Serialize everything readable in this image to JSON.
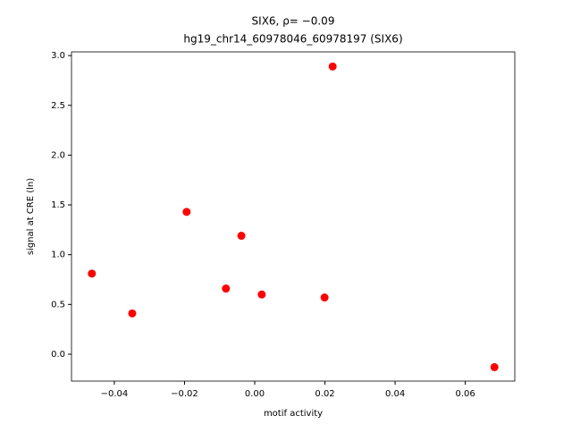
{
  "chart_data": {
    "type": "scatter",
    "title": "SIX6, ρ= −0.09",
    "subtitle": "hg19_chr14_60978046_60978197 (SIX6)",
    "x_label": "motif activity",
    "y_label": "signal at CRE (ln)",
    "color": "#ff0000",
    "x": [
      -0.0464,
      -0.0349,
      -0.0194,
      -0.0082,
      -0.0038,
      0.002,
      0.0199,
      0.0222,
      0.0683
    ],
    "values": [
      0.81,
      0.41,
      1.43,
      0.66,
      1.19,
      0.6,
      0.57,
      2.89,
      -0.13
    ],
    "xlim": [
      -0.0522,
      0.0741
    ],
    "ylim": [
      -0.27,
      3.037
    ],
    "xticks": [
      {
        "value": -0.04,
        "label": "−0.04"
      },
      {
        "value": -0.02,
        "label": "−0.02"
      },
      {
        "value": 0,
        "label": "0.00"
      },
      {
        "value": 0.02,
        "label": "0.02"
      },
      {
        "value": 0.04,
        "label": "0.04"
      },
      {
        "value": 0.06,
        "label": "0.06"
      }
    ],
    "yticks": [
      {
        "value": 0,
        "label": "0.0"
      },
      {
        "value": 0.5,
        "label": "0.5"
      },
      {
        "value": 1,
        "label": "1.0"
      },
      {
        "value": 1.5,
        "label": "1.5"
      },
      {
        "value": 2,
        "label": "2.0"
      },
      {
        "value": 2.5,
        "label": "2.5"
      },
      {
        "value": 3,
        "label": "3.0"
      }
    ]
  }
}
